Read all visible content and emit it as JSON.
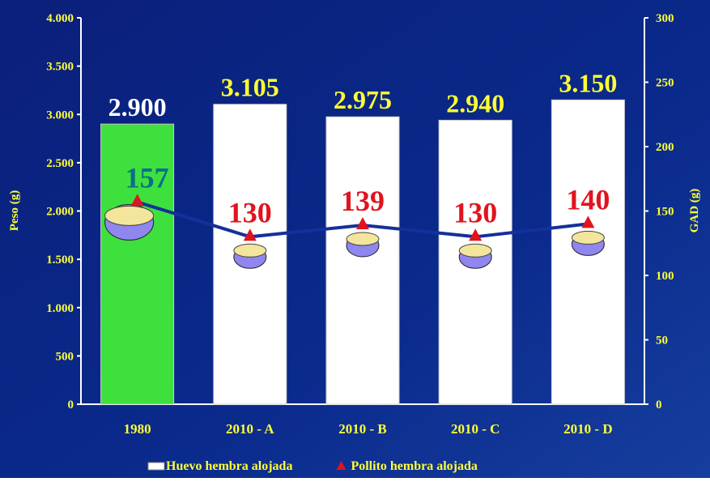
{
  "chart_data": {
    "type": "bar",
    "categories": [
      "1980",
      "2010 - A",
      "2010 - B",
      "2010 - C",
      "2010 - D"
    ],
    "y_label": "Peso (g)",
    "y2_label": "GAD (g)",
    "ylim": [
      0,
      4000
    ],
    "yticks": [
      0,
      500,
      {
        "value": 1000,
        "label": "1.000"
      },
      {
        "value": 1500,
        "label": "1.500"
      },
      {
        "value": 2000,
        "label": "2.000"
      },
      {
        "value": 2500,
        "label": "2.500"
      },
      {
        "value": 3000,
        "label": "3.000"
      },
      {
        "value": 3500,
        "label": "3.500"
      },
      {
        "value": 4000,
        "label": "4.000"
      }
    ],
    "y2lim": [
      0,
      300
    ],
    "y2ticks": [
      0,
      50,
      100,
      150,
      200,
      250,
      300
    ],
    "legend": "bottom",
    "series": [
      {
        "name": "Huevo hembra alojada",
        "type": "bar",
        "color": "#ffffff",
        "colors": [
          "#3ee03e",
          "#ffffff",
          "#ffffff",
          "#ffffff",
          "#ffffff"
        ],
        "values": [
          2900,
          3105,
          2975,
          2940,
          3150
        ],
        "value_labels": [
          "2.900",
          "3.105",
          "2.975",
          "2.940",
          "3.150"
        ],
        "value_label_colors": [
          "#ffffff",
          "#ffff33",
          "#ffff33",
          "#ffff33",
          "#ffff33"
        ]
      },
      {
        "name": "Pollito hembra alojada",
        "type": "line",
        "axis": "y2",
        "color": "#15309a",
        "marker_color": "#e0141e",
        "values": [
          157,
          130,
          139,
          130,
          140
        ],
        "value_label_colors": [
          "#0b6e8a",
          "#e0141e",
          "#e0141e",
          "#e0141e",
          "#e0141e"
        ]
      }
    ]
  }
}
